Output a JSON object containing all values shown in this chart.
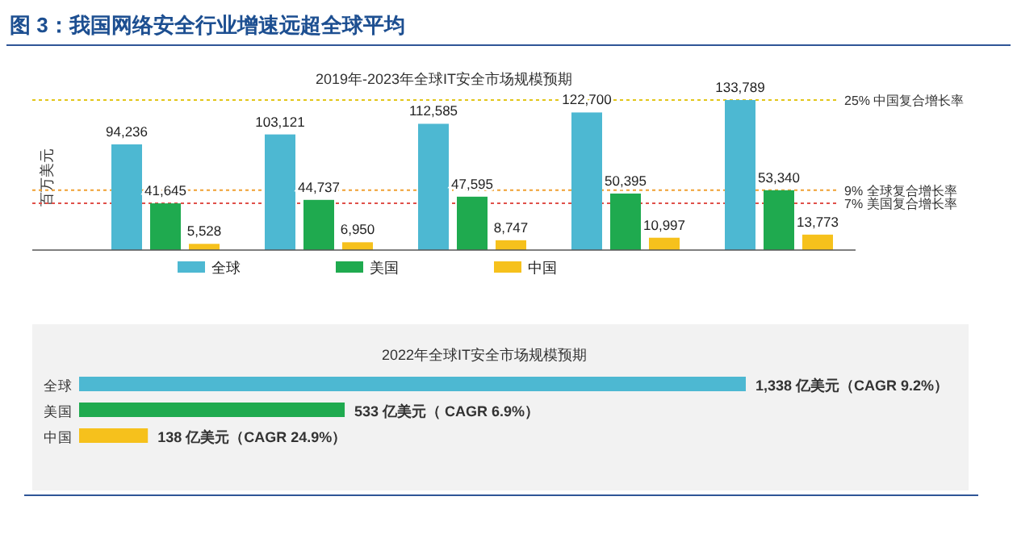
{
  "chart_data": [
    {
      "type": "bar",
      "title": "图 3：我国网络安全行业增速远超全球平均",
      "subtitle": "2019年-2023年全球IT安全市场规模预期",
      "ylabel": "百万美元",
      "categories": [
        null,
        null,
        null,
        null,
        null
      ],
      "series": [
        {
          "name": "全球",
          "color": "#4db8d2",
          "values": [
            94236,
            103121,
            112585,
            122700,
            133789
          ],
          "value_labels": [
            "94,236",
            "103,121",
            "112,585",
            "122,700",
            "133,789"
          ]
        },
        {
          "name": "美国",
          "color": "#1faa4f",
          "values": [
            41645,
            44737,
            47595,
            50395,
            53340
          ],
          "value_labels": [
            "41,645",
            "44,737",
            "47,595",
            "50,395",
            "53,340"
          ]
        },
        {
          "name": "中国",
          "color": "#f6c11c",
          "values": [
            5528,
            6950,
            8747,
            10997,
            13773
          ],
          "value_labels": [
            "5,528",
            "6,950",
            "8,747",
            "10,997",
            "13,773"
          ]
        }
      ],
      "legend": "bottom",
      "ref_lines": [
        {
          "axis": "y",
          "value": 133789,
          "label": "25% 中国复合增长率",
          "color": "#e2c619",
          "line_style": "dotted"
        },
        {
          "axis": "y",
          "value": 53340,
          "label": "9% 全球复合增长率",
          "color": "#f0a030",
          "line_style": "dotted"
        },
        {
          "axis": "y",
          "value": 41645,
          "label": "7% 美国复合增长率",
          "color": "#e0504a",
          "line_style": "dotted"
        }
      ]
    },
    {
      "type": "bar",
      "orientation": "horizontal",
      "title": "2022年全球IT安全市场规模预期",
      "categories": [
        "全球",
        "美国",
        "中国"
      ],
      "values": [
        1338,
        533,
        138
      ],
      "colors": [
        "#4db8d2",
        "#1faa4f",
        "#f6c11c"
      ],
      "value_labels": [
        "1,338 亿美元（CAGR 9.2%）",
        "533 亿美元（ CAGR 6.9%）",
        "138 亿美元（CAGR 24.9%）"
      ]
    }
  ]
}
